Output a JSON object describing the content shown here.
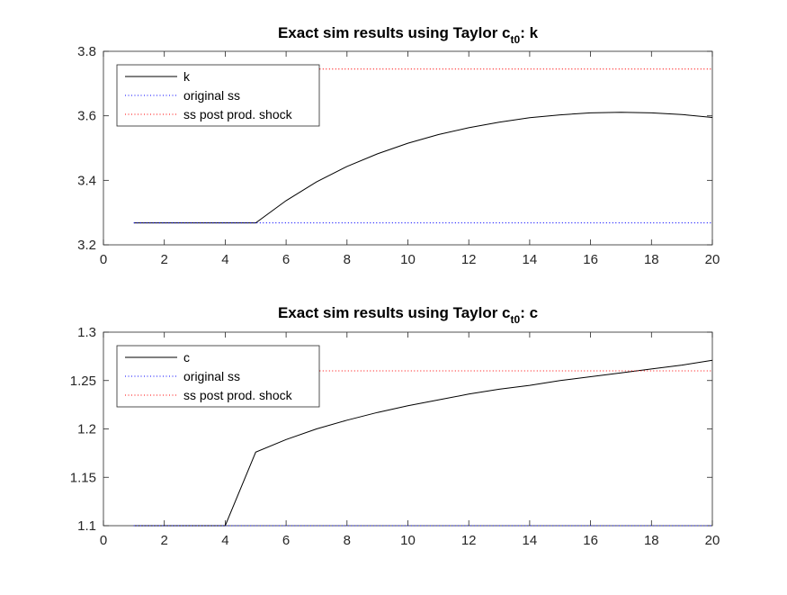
{
  "chart_data": [
    {
      "type": "line",
      "title_main": "Exact sim results using Taylor c",
      "title_sub": "t0",
      "title_tail": ": k",
      "xlim": [
        0,
        20
      ],
      "ylim": [
        3.2,
        3.8
      ],
      "xticks": [
        "0",
        "2",
        "4",
        "6",
        "8",
        "10",
        "12",
        "14",
        "16",
        "18",
        "20"
      ],
      "yticks": [
        "3.2",
        "3.4",
        "3.6",
        "3.8"
      ],
      "grid": false,
      "legend_position": "top-left",
      "series": [
        {
          "name": "k",
          "color": "#000000",
          "style": "solid",
          "x": [
            1,
            2,
            3,
            4,
            5,
            6,
            7,
            8,
            9,
            10,
            11,
            12,
            13,
            14,
            15,
            16,
            17,
            18,
            19,
            20
          ],
          "y": [
            3.268,
            3.268,
            3.268,
            3.268,
            3.268,
            3.337,
            3.395,
            3.443,
            3.482,
            3.515,
            3.542,
            3.563,
            3.58,
            3.594,
            3.603,
            3.609,
            3.611,
            3.609,
            3.604,
            3.595
          ]
        },
        {
          "name": "original ss",
          "color": "#0000ff",
          "style": "dotted",
          "x": [
            1,
            20
          ],
          "y": [
            3.268,
            3.268
          ]
        },
        {
          "name": "ss post prod. shock",
          "color": "#ff0000",
          "style": "dotted",
          "x": [
            1,
            20
          ],
          "y": [
            3.745,
            3.745
          ]
        }
      ]
    },
    {
      "type": "line",
      "title_main": "Exact sim results using Taylor c",
      "title_sub": "t0",
      "title_tail": ": c",
      "xlim": [
        0,
        20
      ],
      "ylim": [
        1.1,
        1.3
      ],
      "xticks": [
        "0",
        "2",
        "4",
        "6",
        "8",
        "10",
        "12",
        "14",
        "16",
        "18",
        "20"
      ],
      "yticks": [
        "1.1",
        "1.15",
        "1.2",
        "1.25",
        "1.3"
      ],
      "grid": false,
      "legend_position": "top-left",
      "series": [
        {
          "name": "c",
          "color": "#000000",
          "style": "solid",
          "x": [
            1,
            2,
            3,
            4,
            5,
            6,
            7,
            8,
            9,
            10,
            11,
            12,
            13,
            14,
            15,
            16,
            17,
            18,
            19,
            20
          ],
          "y": [
            1.1,
            1.1,
            1.1,
            1.1,
            1.176,
            1.189,
            1.2,
            1.209,
            1.217,
            1.224,
            1.23,
            1.236,
            1.241,
            1.245,
            1.25,
            1.254,
            1.258,
            1.262,
            1.266,
            1.271
          ]
        },
        {
          "name": "original ss",
          "color": "#0000ff",
          "style": "dotted",
          "x": [
            1,
            20
          ],
          "y": [
            1.1,
            1.1
          ]
        },
        {
          "name": "ss post prod. shock",
          "color": "#ff0000",
          "style": "dotted",
          "x": [
            1,
            20
          ],
          "y": [
            1.26,
            1.26
          ]
        }
      ]
    }
  ]
}
